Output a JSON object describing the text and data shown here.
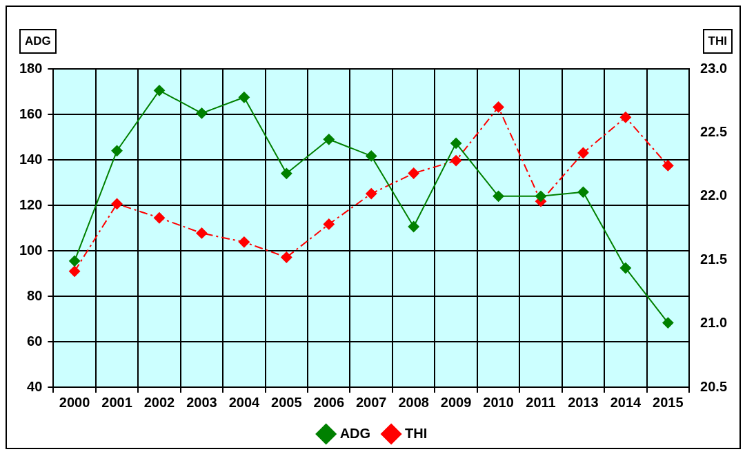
{
  "chart_data": {
    "type": "line",
    "ylabel": "ADG",
    "y2label": "THI",
    "categories": [
      "2000",
      "2001",
      "2002",
      "2003",
      "2004",
      "2005",
      "2006",
      "2007",
      "2008",
      "2009",
      "2010",
      "2011",
      "2013",
      "2014",
      "2015"
    ],
    "series": [
      {
        "name": "ADG",
        "color": "#008000",
        "line_style": "solid",
        "values": [
          95.5,
          144,
          170.5,
          160.5,
          167.5,
          134,
          149,
          141.7,
          110.6,
          147.3,
          124,
          124,
          125.8,
          92.4,
          68.3
        ]
      },
      {
        "name": "THI",
        "color": "#ff0000",
        "axis": "y2",
        "line_style": "dashdot",
        "values": [
          21.41,
          21.94,
          21.83,
          21.71,
          21.64,
          21.52,
          21.78,
          22.02,
          22.18,
          22.28,
          22.7,
          21.96,
          22.34,
          22.62,
          22.24
        ]
      }
    ],
    "ylim": [
      40,
      180
    ],
    "yticks": [
      40,
      60,
      80,
      100,
      120,
      140,
      160,
      180
    ],
    "y2lim": [
      20.5,
      23.0
    ],
    "y2ticks": [
      {
        "value": 20.5,
        "label": "20.5"
      },
      {
        "value": 21,
        "label": "21.0"
      },
      {
        "value": 21.5,
        "label": "21.5"
      },
      {
        "value": 22,
        "label": "22.0"
      },
      {
        "value": 22.5,
        "label": "22.5"
      },
      {
        "value": 23,
        "label": "23.0"
      }
    ],
    "grid": true,
    "legend": "bottom",
    "marker": "diamond"
  }
}
